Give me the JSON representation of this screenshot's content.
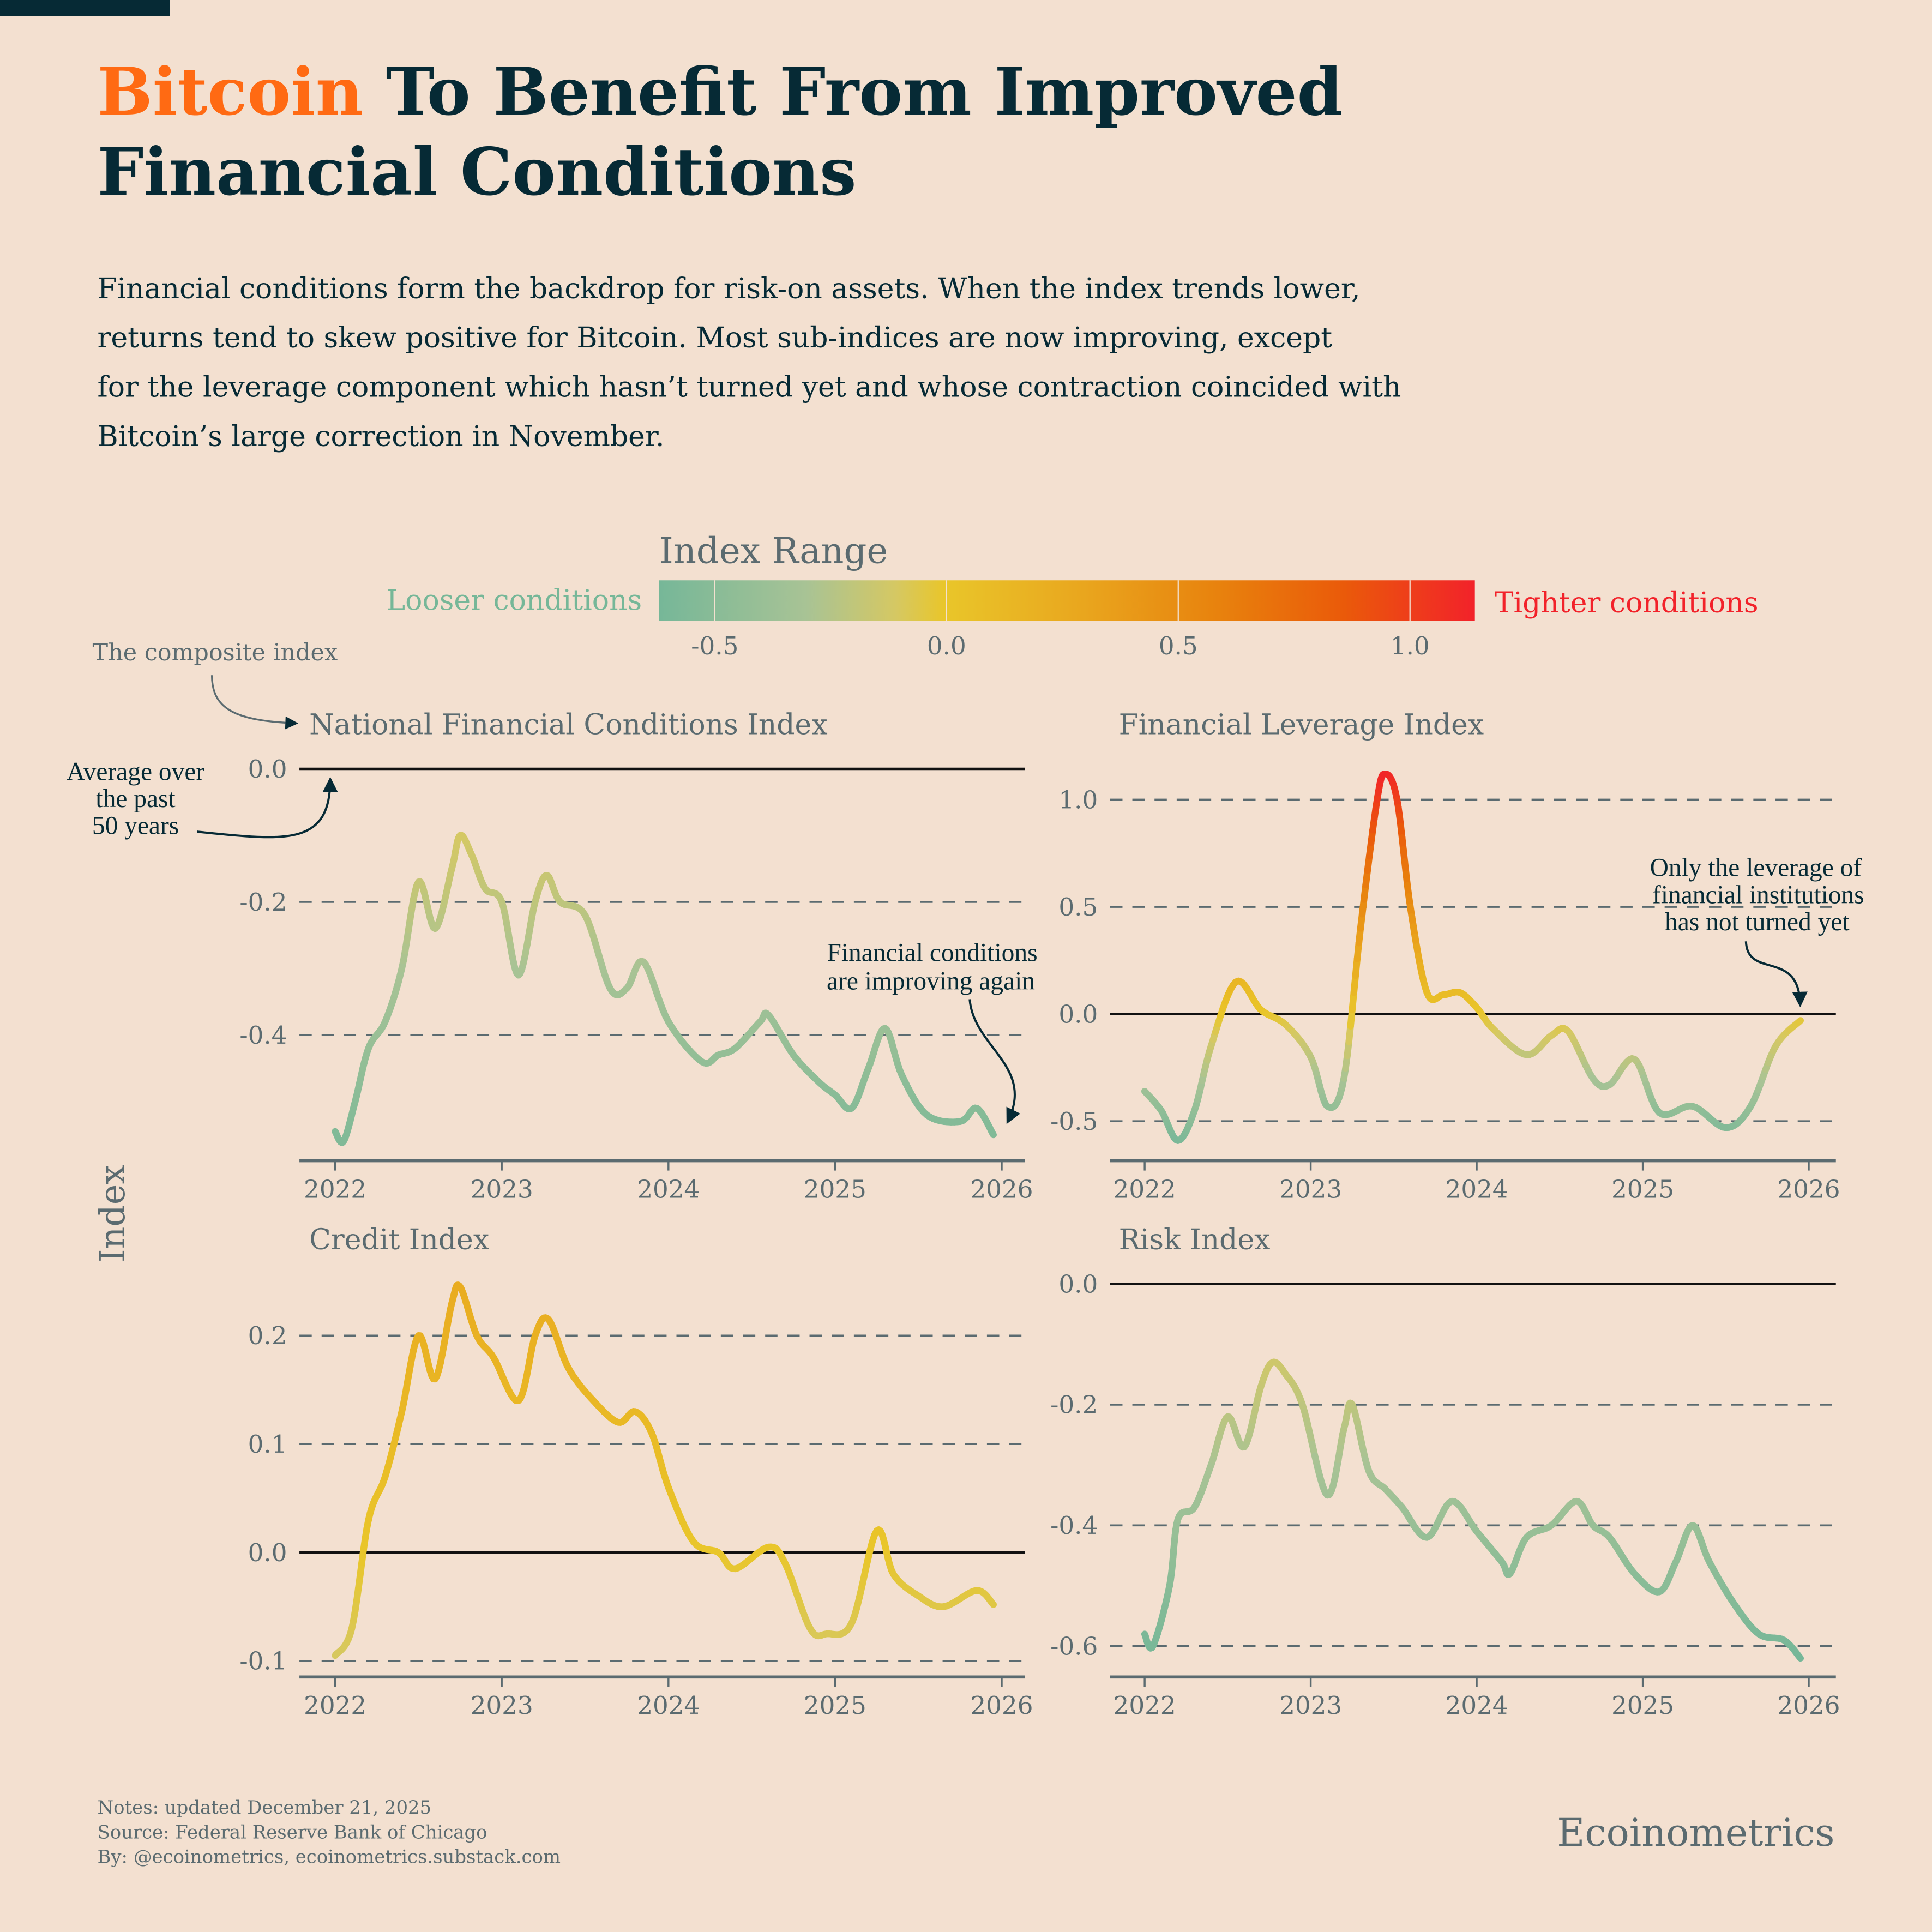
{
  "title": {
    "highlight": "Bitcoin",
    "line1_rest": " To Benefit From Improved",
    "line2": "Financial Conditions"
  },
  "subtitle": [
    "Financial conditions form the backdrop for risk-on assets. When the index trends lower,",
    "returns tend to skew positive for Bitcoin. Most sub-indices are now improving, except",
    "for the leverage component which hasn’t turned yet and whose contraction coincided with",
    "Bitcoin’s large correction in November."
  ],
  "colors": {
    "highlight": "#ff6a13",
    "title": "#062a35",
    "background": "#f3e0d0",
    "looser": "#76b798",
    "tighter": "#f2222a"
  },
  "legend": {
    "title": "Index Range",
    "left_label": "Looser conditions",
    "right_label": "Tighter conditions",
    "ticks": [
      "-0.5",
      "0.0",
      "0.5",
      "1.0"
    ],
    "range": [
      -0.62,
      1.14
    ]
  },
  "y_axis_label": "Index",
  "annotations": {
    "composite": "The composite index",
    "average": [
      "Average over",
      "the past",
      "50 years"
    ],
    "improving": [
      "Financial conditions",
      "are improving again"
    ],
    "leverage": [
      "Only the leverage of",
      "financial institutions",
      "has not turned yet"
    ]
  },
  "notes": [
    "Notes: updated December 21, 2025",
    "Source: Federal Reserve Bank of Chicago",
    "By: @ecoinometrics, ecoinometrics.substack.com"
  ],
  "brand": "Ecoinometrics",
  "chart_data": [
    {
      "type": "line",
      "title": "National Financial Conditions Index",
      "xticks": [
        "2022",
        "2023",
        "2024",
        "2025",
        "2026"
      ],
      "yticks": [
        "0.0",
        "-0.2",
        "-0.4"
      ],
      "ylim": [
        -0.59,
        0.0
      ],
      "baseline": 0,
      "x": [
        2022.0,
        2022.05,
        2022.12,
        2022.2,
        2022.3,
        2022.4,
        2022.5,
        2022.6,
        2022.7,
        2022.75,
        2022.82,
        2022.9,
        2023.0,
        2023.1,
        2023.2,
        2023.27,
        2023.35,
        2023.5,
        2023.65,
        2023.75,
        2023.85,
        2024.0,
        2024.2,
        2024.3,
        2024.4,
        2024.55,
        2024.6,
        2024.75,
        2024.9,
        2025.0,
        2025.1,
        2025.2,
        2025.3,
        2025.4,
        2025.55,
        2025.75,
        2025.85,
        2025.95
      ],
      "y": [
        -0.545,
        -0.56,
        -0.5,
        -0.42,
        -0.38,
        -0.3,
        -0.17,
        -0.24,
        -0.15,
        -0.1,
        -0.13,
        -0.18,
        -0.2,
        -0.31,
        -0.2,
        -0.16,
        -0.2,
        -0.22,
        -0.33,
        -0.33,
        -0.29,
        -0.38,
        -0.44,
        -0.43,
        -0.42,
        -0.38,
        -0.37,
        -0.43,
        -0.47,
        -0.49,
        -0.51,
        -0.45,
        -0.39,
        -0.46,
        -0.52,
        -0.53,
        -0.51,
        -0.55
      ]
    },
    {
      "type": "line",
      "title": "Financial Leverage Index",
      "xticks": [
        "2022",
        "2023",
        "2024",
        "2025",
        "2026"
      ],
      "yticks": [
        "1.0",
        "0.5",
        "0.0",
        "-0.5"
      ],
      "ylim": [
        -0.69,
        1.15
      ],
      "baseline": 0,
      "x": [
        2022.0,
        2022.1,
        2022.2,
        2022.3,
        2022.4,
        2022.55,
        2022.7,
        2022.85,
        2023.0,
        2023.1,
        2023.2,
        2023.3,
        2023.4,
        2023.45,
        2023.52,
        2023.6,
        2023.7,
        2023.8,
        2023.9,
        2024.0,
        2024.1,
        2024.3,
        2024.45,
        2024.55,
        2024.7,
        2024.8,
        2024.95,
        2025.1,
        2025.3,
        2025.5,
        2025.65,
        2025.8,
        2025.95
      ],
      "y": [
        -0.36,
        -0.45,
        -0.59,
        -0.45,
        -0.15,
        0.15,
        0.02,
        -0.05,
        -0.2,
        -0.43,
        -0.3,
        0.4,
        1.0,
        1.12,
        1.0,
        0.5,
        0.1,
        0.09,
        0.1,
        0.03,
        -0.07,
        -0.19,
        -0.1,
        -0.08,
        -0.3,
        -0.33,
        -0.21,
        -0.46,
        -0.43,
        -0.53,
        -0.43,
        -0.15,
        -0.03
      ]
    },
    {
      "type": "line",
      "title": "Credit Index",
      "xticks": [
        "2022",
        "2023",
        "2024",
        "2025",
        "2026"
      ],
      "yticks": [
        "0.2",
        "0.1",
        "0.0",
        "-0.1"
      ],
      "ylim": [
        -0.115,
        0.25
      ],
      "baseline": 0,
      "x": [
        2022.0,
        2022.1,
        2022.2,
        2022.3,
        2022.4,
        2022.5,
        2022.6,
        2022.7,
        2022.75,
        2022.85,
        2022.95,
        2023.1,
        2023.2,
        2023.28,
        2023.4,
        2023.55,
        2023.7,
        2023.8,
        2023.9,
        2024.0,
        2024.15,
        2024.3,
        2024.4,
        2024.6,
        2024.7,
        2024.85,
        2024.95,
        2025.1,
        2025.25,
        2025.35,
        2025.5,
        2025.65,
        2025.85,
        2025.95
      ],
      "y": [
        -0.095,
        -0.07,
        0.03,
        0.07,
        0.13,
        0.2,
        0.16,
        0.23,
        0.245,
        0.2,
        0.18,
        0.14,
        0.2,
        0.215,
        0.17,
        0.14,
        0.12,
        0.13,
        0.11,
        0.06,
        0.01,
        0.0,
        -0.015,
        0.005,
        -0.01,
        -0.07,
        -0.075,
        -0.065,
        0.02,
        -0.02,
        -0.04,
        -0.05,
        -0.035,
        -0.048
      ]
    },
    {
      "type": "line",
      "title": "Risk Index",
      "xticks": [
        "2022",
        "2023",
        "2024",
        "2025",
        "2026"
      ],
      "yticks": [
        "0.0",
        "-0.2",
        "-0.4",
        "-0.6"
      ],
      "ylim": [
        -0.65,
        0.0
      ],
      "baseline": 0,
      "x": [
        2022.0,
        2022.05,
        2022.15,
        2022.2,
        2022.3,
        2022.4,
        2022.5,
        2022.6,
        2022.7,
        2022.77,
        2022.85,
        2022.95,
        2023.1,
        2023.2,
        2023.25,
        2023.35,
        2023.45,
        2023.55,
        2023.7,
        2023.85,
        2024.0,
        2024.15,
        2024.2,
        2024.3,
        2024.45,
        2024.6,
        2024.7,
        2024.8,
        2024.95,
        2025.1,
        2025.2,
        2025.3,
        2025.4,
        2025.55,
        2025.7,
        2025.85,
        2025.95
      ],
      "y": [
        -0.58,
        -0.6,
        -0.5,
        -0.39,
        -0.37,
        -0.3,
        -0.22,
        -0.27,
        -0.17,
        -0.13,
        -0.15,
        -0.2,
        -0.35,
        -0.24,
        -0.2,
        -0.31,
        -0.34,
        -0.37,
        -0.42,
        -0.36,
        -0.41,
        -0.46,
        -0.48,
        -0.42,
        -0.4,
        -0.36,
        -0.4,
        -0.42,
        -0.48,
        -0.51,
        -0.46,
        -0.4,
        -0.46,
        -0.53,
        -0.58,
        -0.59,
        -0.62
      ]
    }
  ]
}
